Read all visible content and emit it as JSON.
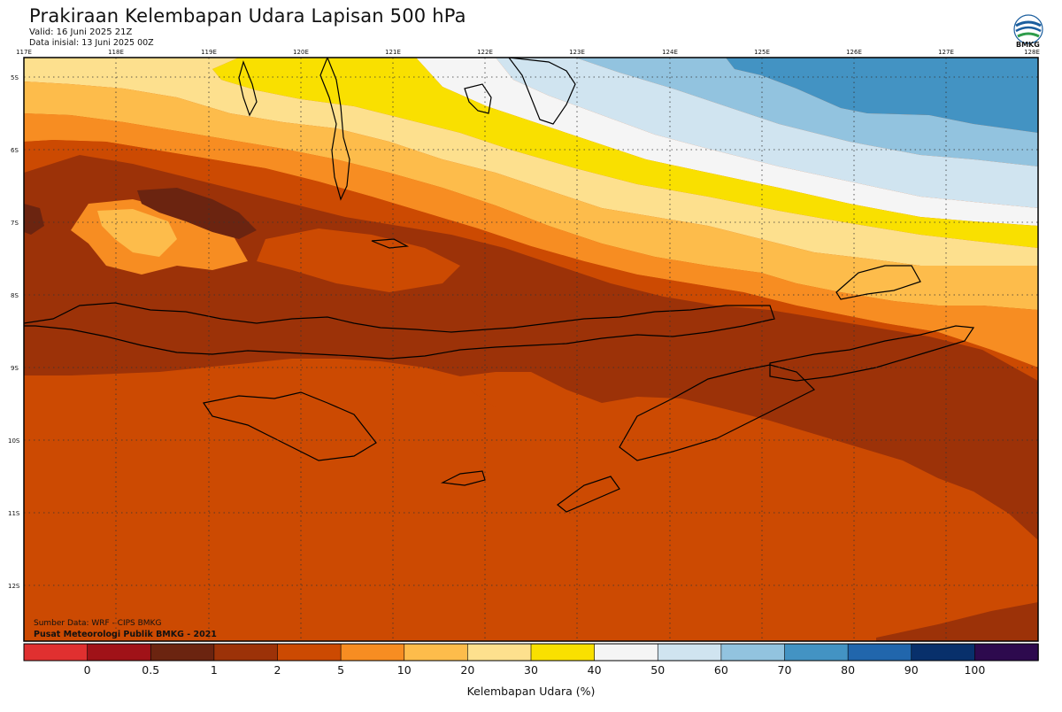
{
  "header": {
    "title": "Prakiraan Kelembapan Udara Lapisan 500 hPa",
    "valid": "Valid: 16 Juni 2025 21Z",
    "data_initial": "Data inisial: 13 Juni 2025 00Z",
    "logo_text": "BMKG"
  },
  "map": {
    "lon_ticks": [
      "117E",
      "118E",
      "119E",
      "120E",
      "121E",
      "122E",
      "123E",
      "124E",
      "125E",
      "126E",
      "127E",
      "128E"
    ],
    "lat_ticks": [
      "5S",
      "6S",
      "7S",
      "8S",
      "9S",
      "10S",
      "11S",
      "12S"
    ],
    "source_line1": "Sumber Data: WRF - CIPS BMKG",
    "source_line2": "Pusat Meteorologi Publik BMKG - 2021"
  },
  "colorbar": {
    "labels": [
      "0",
      "0.5",
      "1",
      "2",
      "5",
      "10",
      "20",
      "30",
      "40",
      "50",
      "60",
      "70",
      "80",
      "90",
      "100"
    ],
    "colors": [
      "#e03030",
      "#a01218",
      "#6b2410",
      "#9c3208",
      "#cc4a02",
      "#f78d22",
      "#fdbc4b",
      "#fde08e",
      "#f9e000",
      "#f5f5f5",
      "#d0e4f0",
      "#92c3df",
      "#4393c3",
      "#2166ac",
      "#08306b",
      "#2d0a4e"
    ],
    "axis_label": "Kelembapan Udara (%)"
  },
  "colors": {
    "darkest_brown": "#6b2410",
    "dark_brown": "#9c3208",
    "orange_brown": "#cc4a02",
    "orange": "#f78d22",
    "light_orange": "#fdbc4b",
    "pale_yellow": "#fde08e",
    "yellow": "#f9e000",
    "white": "#f5f5f5",
    "pale_blue": "#d0e4f0",
    "light_blue": "#92c3df",
    "mid_blue": "#4393c3"
  }
}
